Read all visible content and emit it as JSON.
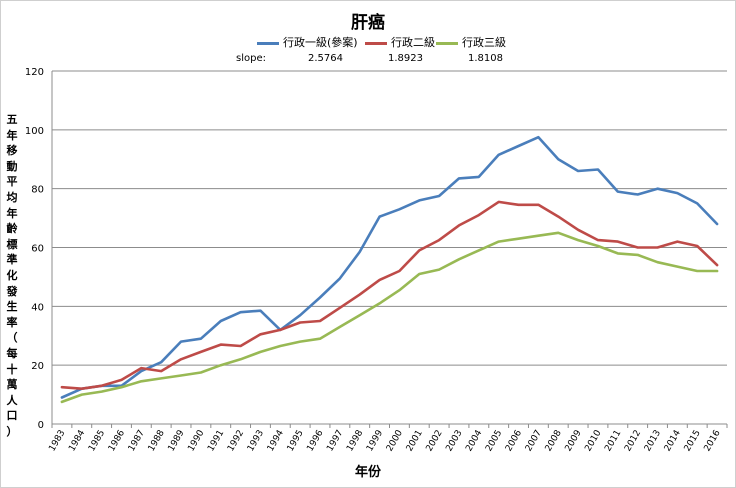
{
  "chart_data": {
    "type": "line",
    "title": "肝癌",
    "xlabel": "年份",
    "ylabel": "五年移動平均年齡標準化發生率（每十萬人口）",
    "ylim": [
      0,
      120
    ],
    "yticks": [
      0,
      20,
      40,
      60,
      80,
      100,
      120
    ],
    "grid": true,
    "legend_position": "top",
    "categories": [
      "1983",
      "1984",
      "1985",
      "1986",
      "1987",
      "1988",
      "1989",
      "1990",
      "1991",
      "1992",
      "1993",
      "1994",
      "1995",
      "1996",
      "1997",
      "1998",
      "1999",
      "2000",
      "2001",
      "2002",
      "2003",
      "2004",
      "2005",
      "2006",
      "2007",
      "2008",
      "2009",
      "2010",
      "2011",
      "2012",
      "2013",
      "2014",
      "2015",
      "2016"
    ],
    "series": [
      {
        "name": "行政一級(參案)",
        "color": "#4a7ebb",
        "values": [
          9,
          12,
          13,
          13,
          18,
          21,
          28,
          29,
          35,
          38,
          38.5,
          32,
          37,
          43,
          49.5,
          58.5,
          70.5,
          73,
          76,
          77.5,
          83.5,
          84,
          91.5,
          94.5,
          97.5,
          90,
          86,
          86.5,
          79,
          78,
          80,
          78.5,
          75,
          68
        ]
      },
      {
        "name": "行政二級",
        "color": "#be4b48",
        "values": [
          12.5,
          12,
          13,
          15,
          19,
          18,
          22,
          24.5,
          27,
          26.5,
          30.5,
          32,
          34.5,
          35,
          39.5,
          44,
          49,
          52,
          59,
          62.5,
          67.5,
          71,
          75.5,
          74.5,
          74.5,
          70.5,
          66,
          62.5,
          62,
          60,
          60,
          62,
          60.5,
          54
        ]
      },
      {
        "name": "行政三級",
        "color": "#98b954",
        "values": [
          7.5,
          10,
          11,
          12.5,
          14.5,
          15.5,
          16.5,
          17.5,
          20,
          22,
          24.5,
          26.5,
          28,
          29,
          33,
          37,
          41,
          45.5,
          51,
          52.5,
          56,
          59,
          62,
          63,
          64,
          65,
          62.5,
          60.5,
          58,
          57.5,
          55,
          53.5,
          52,
          52
        ]
      }
    ],
    "slope": {
      "label": "slope:",
      "values": [
        "2.5764",
        "1.8923",
        "1.8108"
      ]
    }
  }
}
